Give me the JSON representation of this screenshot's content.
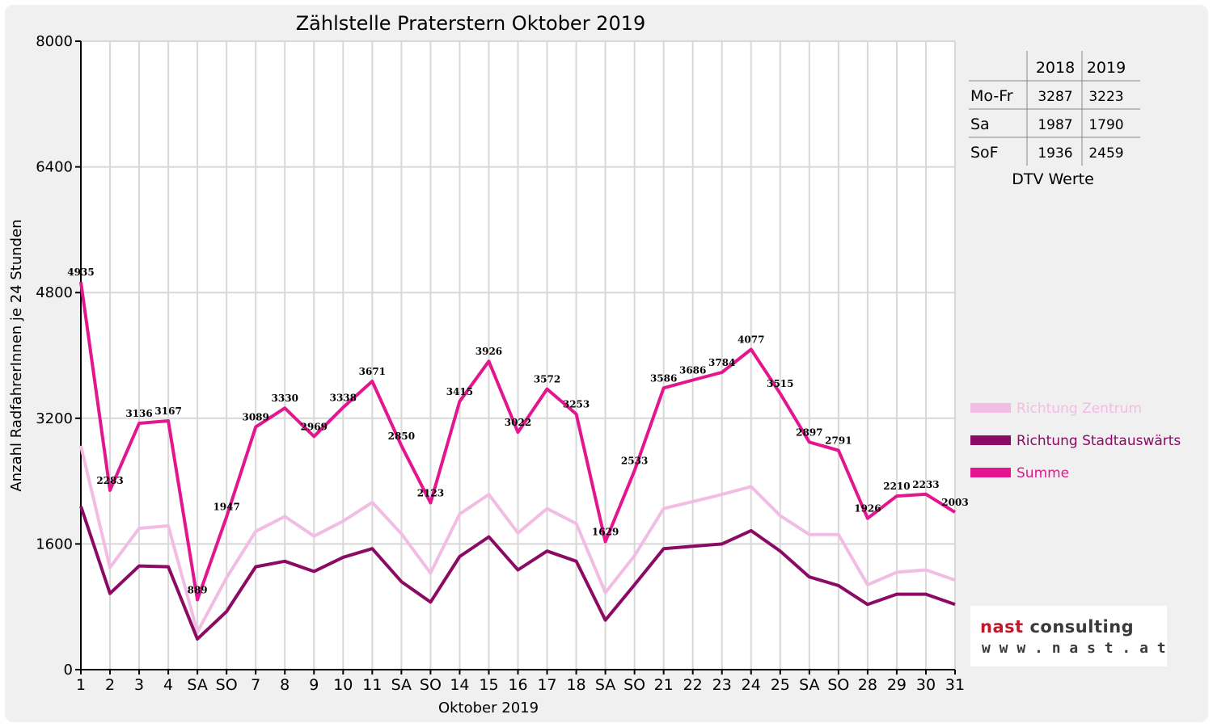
{
  "chart_data": {
    "type": "line",
    "title": "Zählstelle Praterstern Oktober 2019",
    "xlabel": "Oktober 2019",
    "ylabel": "Anzahl RadfahrerInnen je 24 Stunden",
    "ylim": [
      0,
      8000
    ],
    "yticks": [
      "0",
      "1600",
      "3200",
      "4800",
      "6400",
      "8000"
    ],
    "categories": [
      "1",
      "2",
      "3",
      "4",
      "SA",
      "SO",
      "7",
      "8",
      "9",
      "10",
      "11",
      "SA",
      "SO",
      "14",
      "15",
      "16",
      "17",
      "18",
      "SA",
      "SO",
      "21",
      "22",
      "23",
      "24",
      "25",
      "SA",
      "SO",
      "28",
      "29",
      "30",
      "31"
    ],
    "highlight_categories": [
      "SO"
    ],
    "highlight_color": "#ff0000",
    "grid": true,
    "legend_position": "right",
    "series": [
      {
        "name": "Richtung Zentrum",
        "color": "#f2bde3",
        "values": [
          2850,
          1300,
          1800,
          1830,
          480,
          1170,
          1760,
          1950,
          1700,
          1890,
          2130,
          1730,
          1230,
          1980,
          2230,
          1740,
          2050,
          1860,
          980,
          1450,
          2050,
          2140,
          2230,
          2330,
          1960,
          1720,
          1720,
          1080,
          1240,
          1270,
          1140
        ]
      },
      {
        "name": "Richtung Stadtauswärts",
        "color": "#8a0a64",
        "values": [
          2080,
          970,
          1320,
          1310,
          390,
          740,
          1310,
          1380,
          1250,
          1430,
          1540,
          1120,
          860,
          1440,
          1690,
          1270,
          1510,
          1380,
          630,
          1080,
          1540,
          1570,
          1600,
          1770,
          1510,
          1180,
          1070,
          830,
          960,
          960,
          830
        ]
      },
      {
        "name": "Summe",
        "color": "#e3168f",
        "values": [
          4935,
          2283,
          3136,
          3167,
          889,
          1947,
          3089,
          3330,
          2969,
          3338,
          3671,
          2850,
          2123,
          3415,
          3926,
          3022,
          3572,
          3253,
          1629,
          2533,
          3586,
          3686,
          3784,
          4077,
          3515,
          2897,
          2791,
          1926,
          2210,
          2233,
          2003
        ],
        "labels": [
          "4935",
          "2283",
          "3136",
          "3167",
          "889",
          "1947",
          "3089",
          "3330",
          "2969",
          "3338",
          "3671",
          "2850",
          "2123",
          "3415",
          "3926",
          "3022",
          "3572",
          "3253",
          "1629",
          "2533",
          "3586",
          "3686",
          "3784",
          "4077",
          "3515",
          "2897",
          "2791",
          "1926",
          "2210",
          "2233",
          "2003"
        ]
      }
    ]
  },
  "dtv_table": {
    "columns": [
      "2018",
      "2019"
    ],
    "rows": [
      {
        "label": "Mo-Fr",
        "values": [
          "3287",
          "3223"
        ]
      },
      {
        "label": "Sa",
        "values": [
          "1987",
          "1790"
        ]
      },
      {
        "label": "SoF",
        "values": [
          "1936",
          "2459"
        ]
      }
    ],
    "caption": "DTV Werte"
  },
  "logo": {
    "brand_first": "nast",
    "brand_rest": " consulting",
    "url": "w w w . n a s t . a t"
  }
}
